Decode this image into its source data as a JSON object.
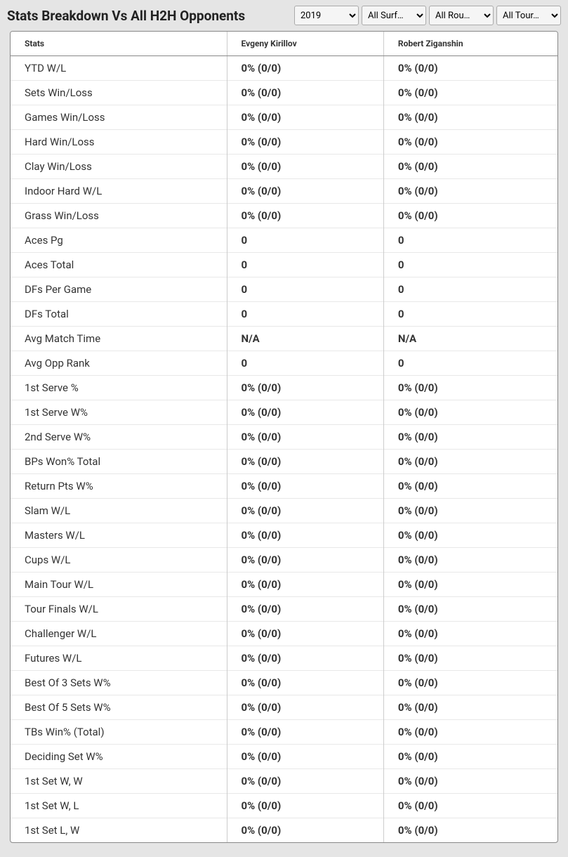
{
  "header": {
    "title": "Stats Breakdown Vs All H2H Opponents"
  },
  "filters": {
    "year": {
      "value": "2019"
    },
    "surface": {
      "value": "All Surf…"
    },
    "round": {
      "value": "All Rou…"
    },
    "tour": {
      "value": "All Tour…"
    }
  },
  "table": {
    "columns": {
      "stats_label": "Stats",
      "player1_label": "Evgeny Kirillov",
      "player2_label": "Robert Ziganshin"
    },
    "rows": [
      {
        "label": "YTD W/L",
        "p1": "0% (0/0)",
        "p2": "0% (0/0)"
      },
      {
        "label": "Sets Win/Loss",
        "p1": "0% (0/0)",
        "p2": "0% (0/0)"
      },
      {
        "label": "Games Win/Loss",
        "p1": "0% (0/0)",
        "p2": "0% (0/0)"
      },
      {
        "label": "Hard Win/Loss",
        "p1": "0% (0/0)",
        "p2": "0% (0/0)"
      },
      {
        "label": "Clay Win/Loss",
        "p1": "0% (0/0)",
        "p2": "0% (0/0)"
      },
      {
        "label": "Indoor Hard W/L",
        "p1": "0% (0/0)",
        "p2": "0% (0/0)"
      },
      {
        "label": "Grass Win/Loss",
        "p1": "0% (0/0)",
        "p2": "0% (0/0)"
      },
      {
        "label": "Aces Pg",
        "p1": "0",
        "p2": "0"
      },
      {
        "label": "Aces Total",
        "p1": "0",
        "p2": "0"
      },
      {
        "label": "DFs Per Game",
        "p1": "0",
        "p2": "0"
      },
      {
        "label": "DFs Total",
        "p1": "0",
        "p2": "0"
      },
      {
        "label": "Avg Match Time",
        "p1": "N/A",
        "p2": "N/A"
      },
      {
        "label": "Avg Opp Rank",
        "p1": "0",
        "p2": "0"
      },
      {
        "label": "1st Serve %",
        "p1": "0% (0/0)",
        "p2": "0% (0/0)"
      },
      {
        "label": "1st Serve W%",
        "p1": "0% (0/0)",
        "p2": "0% (0/0)"
      },
      {
        "label": "2nd Serve W%",
        "p1": "0% (0/0)",
        "p2": "0% (0/0)"
      },
      {
        "label": "BPs Won% Total",
        "p1": "0% (0/0)",
        "p2": "0% (0/0)"
      },
      {
        "label": "Return Pts W%",
        "p1": "0% (0/0)",
        "p2": "0% (0/0)"
      },
      {
        "label": "Slam W/L",
        "p1": "0% (0/0)",
        "p2": "0% (0/0)"
      },
      {
        "label": "Masters W/L",
        "p1": "0% (0/0)",
        "p2": "0% (0/0)"
      },
      {
        "label": "Cups W/L",
        "p1": "0% (0/0)",
        "p2": "0% (0/0)"
      },
      {
        "label": "Main Tour W/L",
        "p1": "0% (0/0)",
        "p2": "0% (0/0)"
      },
      {
        "label": "Tour Finals W/L",
        "p1": "0% (0/0)",
        "p2": "0% (0/0)"
      },
      {
        "label": "Challenger W/L",
        "p1": "0% (0/0)",
        "p2": "0% (0/0)"
      },
      {
        "label": "Futures W/L",
        "p1": "0% (0/0)",
        "p2": "0% (0/0)"
      },
      {
        "label": "Best Of 3 Sets W%",
        "p1": "0% (0/0)",
        "p2": "0% (0/0)"
      },
      {
        "label": "Best Of 5 Sets W%",
        "p1": "0% (0/0)",
        "p2": "0% (0/0)"
      },
      {
        "label": "TBs Win% (Total)",
        "p1": "0% (0/0)",
        "p2": "0% (0/0)"
      },
      {
        "label": "Deciding Set W%",
        "p1": "0% (0/0)",
        "p2": "0% (0/0)"
      },
      {
        "label": "1st Set W, W",
        "p1": "0% (0/0)",
        "p2": "0% (0/0)"
      },
      {
        "label": "1st Set W, L",
        "p1": "0% (0/0)",
        "p2": "0% (0/0)"
      },
      {
        "label": "1st Set L, W",
        "p1": "0% (0/0)",
        "p2": "0% (0/0)"
      }
    ]
  }
}
